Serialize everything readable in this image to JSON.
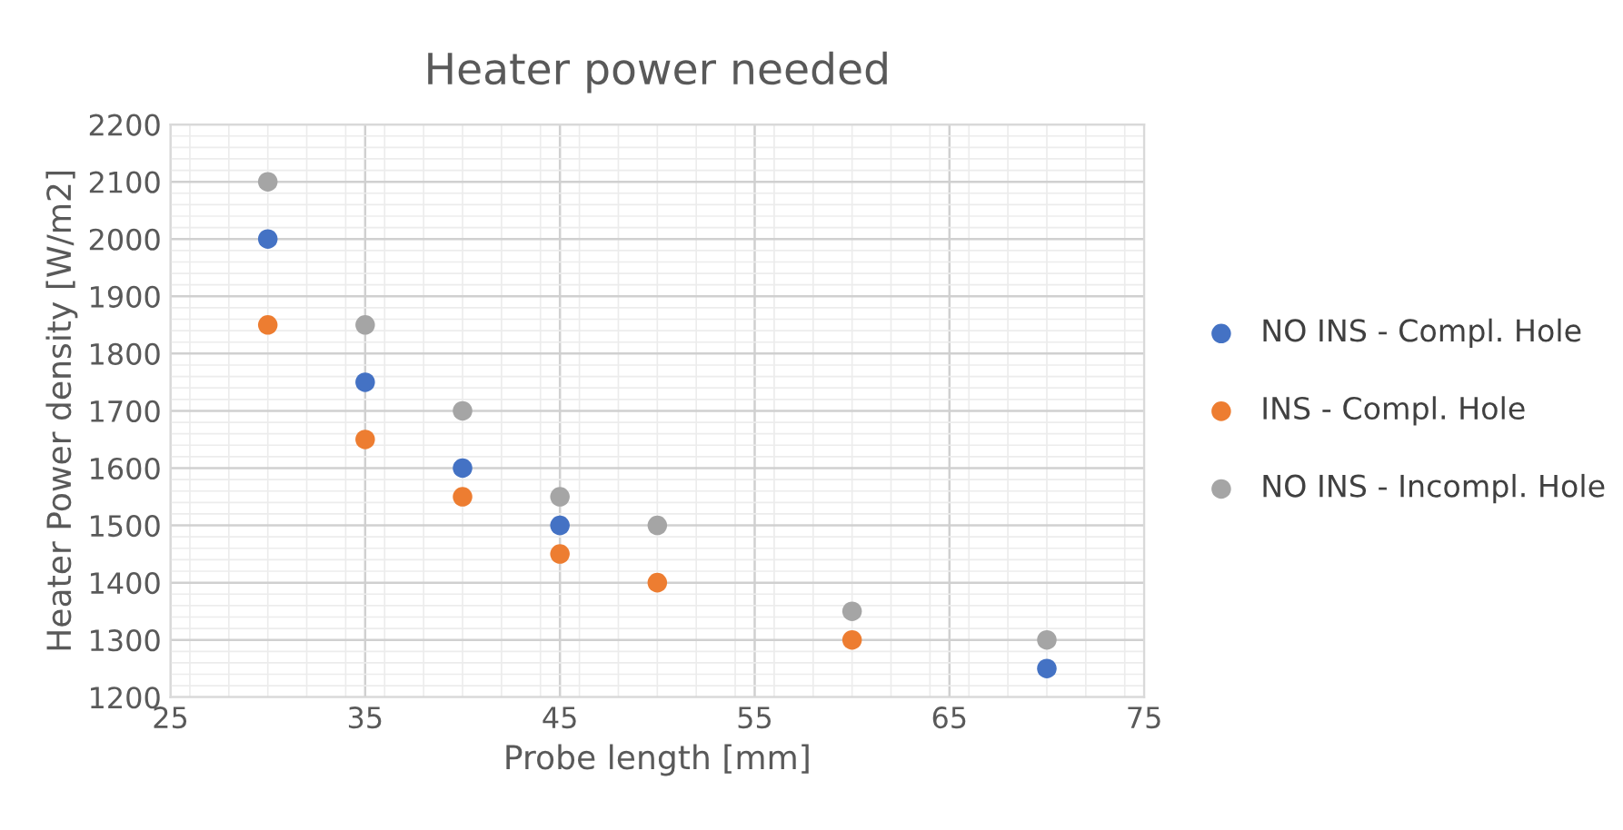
{
  "chart_data": {
    "type": "scatter",
    "title": "Heater power needed",
    "xlabel": "Probe length [mm]",
    "ylabel": "Heater Power density [W/m2]",
    "xlim": [
      25,
      75
    ],
    "xticks": [
      25,
      35,
      45,
      55,
      65,
      75
    ],
    "ylim": [
      1200,
      2200
    ],
    "yticks": [
      1200,
      1300,
      1400,
      1500,
      1600,
      1700,
      1800,
      1900,
      2000,
      2100,
      2200
    ],
    "grid": true,
    "legend": "right",
    "marker": "circle",
    "series": [
      {
        "name": "NO INS - Compl. Hole",
        "color": "#4472c4",
        "x": [
          30,
          35,
          40,
          45,
          70
        ],
        "values": [
          2000,
          1750,
          1600,
          1500,
          1250
        ]
      },
      {
        "name": "INS - Compl. Hole",
        "color": "#ed7d31",
        "x": [
          30,
          35,
          40,
          45,
          50,
          60
        ],
        "values": [
          1850,
          1650,
          1550,
          1450,
          1400,
          1300
        ]
      },
      {
        "name": "NO INS - Incompl. Hole",
        "color": "#a5a5a5",
        "x": [
          30,
          35,
          40,
          45,
          50,
          60,
          70
        ],
        "values": [
          2100,
          1850,
          1700,
          1550,
          1500,
          1350,
          1300
        ]
      }
    ]
  }
}
